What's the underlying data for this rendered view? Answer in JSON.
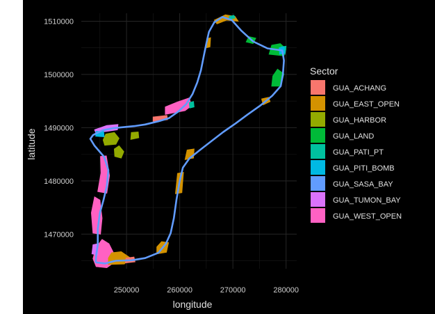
{
  "chart_data": {
    "type": "map",
    "xlabel": "longitude",
    "ylabel": "latitude",
    "xlim": [
      241500,
      282000
    ],
    "ylim": [
      1463500,
      1511500
    ],
    "x_ticks": [
      250000,
      260000,
      270000,
      280000
    ],
    "x_tick_labels": [
      "250000",
      "260000",
      "270000",
      "280000"
    ],
    "y_ticks": [
      1470000,
      1480000,
      1490000,
      1500000,
      1510000
    ],
    "y_tick_labels": [
      "1470000",
      "1480000",
      "1490000",
      "1500000",
      "1510000"
    ],
    "grid": true,
    "legend": {
      "title": "Sector",
      "placement": "right",
      "entries": [
        {
          "name": "GUA_ACHANG",
          "color": "#F8766D"
        },
        {
          "name": "GUA_EAST_OPEN",
          "color": "#D39200"
        },
        {
          "name": "GUA_HARBOR",
          "color": "#93AA00"
        },
        {
          "name": "GUA_LAND",
          "color": "#00BA38"
        },
        {
          "name": "GUA_PATI_PT",
          "color": "#00C19F"
        },
        {
          "name": "GUA_PITI_BOMB",
          "color": "#00B9E3"
        },
        {
          "name": "GUA_SASA_BAY",
          "color": "#619CFF"
        },
        {
          "name": "GUA_TUMON_BAY",
          "color": "#DB72FB"
        },
        {
          "name": "GUA_WEST_OPEN",
          "color": "#FF61C3"
        }
      ]
    },
    "coast_outline": [
      [
        244200,
        1464700
      ],
      [
        246000,
        1464500
      ],
      [
        248000,
        1465000
      ],
      [
        251000,
        1465100
      ],
      [
        253500,
        1465500
      ],
      [
        256000,
        1466500
      ],
      [
        257400,
        1468200
      ],
      [
        258300,
        1470200
      ],
      [
        258900,
        1473000
      ],
      [
        259400,
        1476500
      ],
      [
        260000,
        1480000
      ],
      [
        260600,
        1482500
      ],
      [
        261800,
        1484200
      ],
      [
        263800,
        1485800
      ],
      [
        266000,
        1487500
      ],
      [
        268200,
        1489200
      ],
      [
        270500,
        1490800
      ],
      [
        272800,
        1492500
      ],
      [
        275200,
        1494200
      ],
      [
        277400,
        1496000
      ],
      [
        279000,
        1497800
      ],
      [
        279400,
        1500000
      ],
      [
        279600,
        1502600
      ],
      [
        279300,
        1504500
      ],
      [
        276500,
        1504900
      ],
      [
        273800,
        1506200
      ],
      [
        271600,
        1508200
      ],
      [
        269800,
        1510200
      ],
      [
        268000,
        1510800
      ],
      [
        266500,
        1509800
      ],
      [
        265500,
        1508000
      ],
      [
        265000,
        1505800
      ],
      [
        264500,
        1503300
      ],
      [
        264000,
        1500800
      ],
      [
        263300,
        1498500
      ],
      [
        262400,
        1496300
      ],
      [
        261200,
        1494400
      ],
      [
        259700,
        1493000
      ],
      [
        258000,
        1491800
      ],
      [
        256000,
        1491200
      ],
      [
        253500,
        1490600
      ],
      [
        251500,
        1490300
      ],
      [
        249500,
        1490100
      ],
      [
        247500,
        1489900
      ],
      [
        245500,
        1489500
      ],
      [
        243700,
        1488600
      ],
      [
        243200,
        1487900
      ],
      [
        244000,
        1486600
      ],
      [
        245800,
        1484500
      ],
      [
        246600,
        1482000
      ],
      [
        246300,
        1479000
      ],
      [
        245700,
        1476500
      ],
      [
        245000,
        1474000
      ],
      [
        244600,
        1471000
      ],
      [
        244600,
        1468000
      ],
      [
        244300,
        1466000
      ],
      [
        244200,
        1464700
      ]
    ],
    "regions": [
      {
        "sector": "GUA_WEST_OPEN",
        "points": [
          [
            244300,
            1463900
          ],
          [
            246300,
            1463700
          ],
          [
            247400,
            1464500
          ],
          [
            247600,
            1466400
          ],
          [
            246700,
            1468200
          ],
          [
            245400,
            1469000
          ],
          [
            244300,
            1467500
          ],
          [
            243700,
            1465400
          ]
        ]
      },
      {
        "sector": "GUA_WEST_OPEN",
        "points": [
          [
            243700,
            1470200
          ],
          [
            245100,
            1470000
          ],
          [
            245400,
            1473000
          ],
          [
            245000,
            1476400
          ],
          [
            244000,
            1477000
          ],
          [
            243400,
            1474000
          ]
        ]
      },
      {
        "sector": "GUA_WEST_OPEN",
        "points": [
          [
            244600,
            1478000
          ],
          [
            246300,
            1477700
          ],
          [
            246800,
            1481000
          ],
          [
            246200,
            1484700
          ],
          [
            245100,
            1484600
          ],
          [
            245200,
            1481500
          ]
        ]
      },
      {
        "sector": "GUA_WEST_OPEN",
        "points": [
          [
            257300,
            1492500
          ],
          [
            261000,
            1493200
          ],
          [
            262200,
            1494100
          ],
          [
            261800,
            1495600
          ],
          [
            259500,
            1494800
          ],
          [
            257300,
            1493900
          ]
        ]
      },
      {
        "sector": "GUA_TUMON_BAY",
        "points": [
          [
            244000,
            1489600
          ],
          [
            246300,
            1490400
          ],
          [
            248400,
            1490600
          ],
          [
            248300,
            1489600
          ],
          [
            246200,
            1489300
          ],
          [
            244200,
            1489100
          ]
        ]
      },
      {
        "sector": "GUA_TUMON_BAY",
        "points": [
          [
            243500,
            1466300
          ],
          [
            244600,
            1466100
          ],
          [
            244600,
            1468200
          ],
          [
            243700,
            1468000
          ]
        ]
      },
      {
        "sector": "GUA_EAST_OPEN",
        "points": [
          [
            246600,
            1464300
          ],
          [
            249600,
            1464400
          ],
          [
            250600,
            1465600
          ],
          [
            249000,
            1466700
          ],
          [
            247200,
            1466500
          ],
          [
            246600,
            1465500
          ]
        ]
      },
      {
        "sector": "GUA_EAST_OPEN",
        "points": [
          [
            255700,
            1466300
          ],
          [
            257500,
            1466600
          ],
          [
            257900,
            1468400
          ],
          [
            256600,
            1468600
          ],
          [
            255700,
            1467600
          ]
        ]
      },
      {
        "sector": "GUA_EAST_OPEN",
        "points": [
          [
            259200,
            1477600
          ],
          [
            260400,
            1477800
          ],
          [
            260700,
            1481600
          ],
          [
            259600,
            1481400
          ]
        ]
      },
      {
        "sector": "GUA_EAST_OPEN",
        "points": [
          [
            261000,
            1484000
          ],
          [
            262600,
            1484300
          ],
          [
            262700,
            1486000
          ],
          [
            261400,
            1485800
          ]
        ]
      },
      {
        "sector": "GUA_EAST_OPEN",
        "points": [
          [
            275700,
            1494300
          ],
          [
            277000,
            1494900
          ],
          [
            276700,
            1495700
          ],
          [
            275400,
            1495400
          ]
        ]
      },
      {
        "sector": "GUA_EAST_OPEN",
        "points": [
          [
            266500,
            1510200
          ],
          [
            268600,
            1511200
          ],
          [
            270400,
            1510900
          ],
          [
            271000,
            1510000
          ],
          [
            268800,
            1510200
          ],
          [
            267000,
            1509500
          ]
        ]
      },
      {
        "sector": "GUA_EAST_OPEN",
        "points": [
          [
            265000,
            1505000
          ],
          [
            265700,
            1505200
          ],
          [
            265800,
            1506900
          ],
          [
            265100,
            1506700
          ]
        ]
      },
      {
        "sector": "GUA_ACHANG",
        "points": [
          [
            249800,
            1464600
          ],
          [
            251600,
            1464800
          ],
          [
            251400,
            1465700
          ],
          [
            249900,
            1465500
          ]
        ]
      },
      {
        "sector": "GUA_ACHANG",
        "points": [
          [
            255000,
            1491200
          ],
          [
            257700,
            1491500
          ],
          [
            257600,
            1492300
          ],
          [
            255000,
            1492000
          ]
        ]
      },
      {
        "sector": "GUA_HARBOR",
        "points": [
          [
            245900,
            1486700
          ],
          [
            248000,
            1486900
          ],
          [
            248600,
            1488000
          ],
          [
            247700,
            1489100
          ],
          [
            246100,
            1488800
          ],
          [
            245600,
            1487700
          ]
        ]
      },
      {
        "sector": "GUA_HARBOR",
        "points": [
          [
            247800,
            1484600
          ],
          [
            249000,
            1484300
          ],
          [
            249500,
            1485500
          ],
          [
            248600,
            1486600
          ],
          [
            247700,
            1486000
          ]
        ]
      },
      {
        "sector": "GUA_HARBOR",
        "points": [
          [
            250800,
            1487800
          ],
          [
            252300,
            1488100
          ],
          [
            252200,
            1489200
          ],
          [
            250900,
            1489100
          ]
        ]
      },
      {
        "sector": "GUA_LAND",
        "points": [
          [
            276800,
            1503800
          ],
          [
            279600,
            1503500
          ],
          [
            280000,
            1504800
          ],
          [
            278900,
            1505800
          ],
          [
            277300,
            1505500
          ]
        ]
      },
      {
        "sector": "GUA_LAND",
        "points": [
          [
            277300,
            1497800
          ],
          [
            279000,
            1497800
          ],
          [
            279600,
            1500100
          ],
          [
            278400,
            1501000
          ],
          [
            277500,
            1499700
          ]
        ]
      },
      {
        "sector": "GUA_LAND",
        "points": [
          [
            272500,
            1506100
          ],
          [
            273800,
            1505800
          ],
          [
            274300,
            1506800
          ],
          [
            273000,
            1507100
          ]
        ]
      },
      {
        "sector": "GUA_PATI_PT",
        "points": [
          [
            279000,
            1503900
          ],
          [
            279800,
            1503800
          ],
          [
            280000,
            1505300
          ],
          [
            279100,
            1505200
          ]
        ]
      },
      {
        "sector": "GUA_PATI_PT",
        "points": [
          [
            269400,
            1510400
          ],
          [
            270400,
            1510600
          ],
          [
            270200,
            1511100
          ],
          [
            269300,
            1510900
          ]
        ]
      },
      {
        "sector": "GUA_PATI_PT",
        "points": [
          [
            261900,
            1493700
          ],
          [
            262700,
            1493900
          ],
          [
            262600,
            1494900
          ],
          [
            261800,
            1494700
          ]
        ]
      },
      {
        "sector": "GUA_PITI_BOMB",
        "points": [
          [
            244200,
            1488400
          ],
          [
            245800,
            1488300
          ],
          [
            245700,
            1489300
          ],
          [
            244300,
            1489300
          ]
        ]
      },
      {
        "sector": "GUA_PITI_BOMB",
        "points": [
          [
            278800,
            1503800
          ],
          [
            279800,
            1504100
          ],
          [
            279600,
            1505200
          ],
          [
            278700,
            1505000
          ]
        ]
      }
    ]
  }
}
